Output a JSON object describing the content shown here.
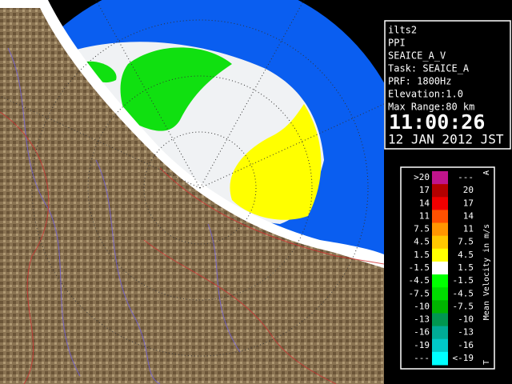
{
  "info": {
    "lines": [
      "ilts2",
      "PPI",
      "SEAICE_A_V",
      "Task: SEAICE_A",
      "PRF: 1800Hz",
      "Elevation:1.0",
      "Max Range:80 km"
    ],
    "time": "11:00:26",
    "date": "12 JAN 2012 JST"
  },
  "legend": {
    "title": "Mean Velocity in m/s",
    "top_mark": "A",
    "bottom_mark": "T",
    "rows": [
      {
        "left": ">20",
        "right": "---",
        "color": "#c0148c"
      },
      {
        "left": "17",
        "right": "20",
        "color": "#b40000"
      },
      {
        "left": "14",
        "right": "17",
        "color": "#f00000"
      },
      {
        "left": "11",
        "right": "14",
        "color": "#ff5000"
      },
      {
        "left": "7.5",
        "right": "11",
        "color": "#ff9600"
      },
      {
        "left": "4.5",
        "right": "7.5",
        "color": "#ffc800"
      },
      {
        "left": "1.5",
        "right": "4.5",
        "color": "#ffff00"
      },
      {
        "left": "-1.5",
        "right": "1.5",
        "color": "#ffffff"
      },
      {
        "left": "-4.5",
        "right": "-1.5",
        "color": "#00ff00"
      },
      {
        "left": "-7.5",
        "right": "-4.5",
        "color": "#00dc00"
      },
      {
        "left": "-10",
        "right": "-7.5",
        "color": "#00b400"
      },
      {
        "left": "-13",
        "right": "-10",
        "color": "#009650"
      },
      {
        "left": "-16",
        "right": "-13",
        "color": "#00aa96"
      },
      {
        "left": "-19",
        "right": "-16",
        "color": "#00c8c8"
      },
      {
        "left": "---",
        "right": "<-19",
        "color": "#00ffff"
      }
    ]
  }
}
